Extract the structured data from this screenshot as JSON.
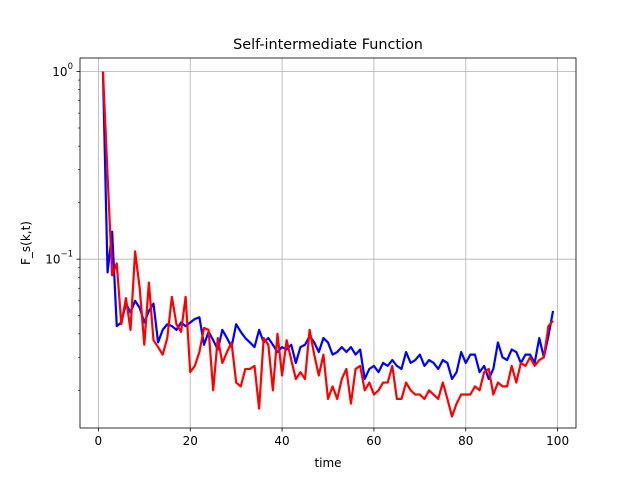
{
  "chart_data": {
    "type": "line",
    "title": "Self-intermediate Function",
    "xlabel": "time",
    "ylabel": "F_s(k,t)",
    "xlim": [
      -4,
      104
    ],
    "ylim": [
      0.0126,
      1.18
    ],
    "yscale": "log",
    "grid": true,
    "x_ticks": [
      0,
      20,
      40,
      60,
      80,
      100
    ],
    "x_tick_labels": [
      "0",
      "20",
      "40",
      "60",
      "80",
      "100"
    ],
    "y_ticks": [
      0.1,
      1.0
    ],
    "y_tick_labels": [
      {
        "base": "10",
        "exp": "−1"
      },
      {
        "base": "10",
        "exp": "0"
      }
    ],
    "x": [
      1,
      2,
      3,
      4,
      5,
      6,
      7,
      8,
      9,
      10,
      11,
      12,
      13,
      14,
      15,
      16,
      17,
      18,
      19,
      20,
      21,
      22,
      23,
      24,
      25,
      26,
      27,
      28,
      29,
      30,
      31,
      32,
      33,
      34,
      35,
      36,
      37,
      38,
      39,
      40,
      41,
      42,
      43,
      44,
      45,
      46,
      47,
      48,
      49,
      50,
      51,
      52,
      53,
      54,
      55,
      56,
      57,
      58,
      59,
      60,
      61,
      62,
      63,
      64,
      65,
      66,
      67,
      68,
      69,
      70,
      71,
      72,
      73,
      74,
      75,
      76,
      77,
      78,
      79,
      80,
      81,
      82,
      83,
      84,
      85,
      86,
      87,
      88,
      89,
      90,
      91,
      92,
      93,
      94,
      95,
      96,
      97,
      98,
      99
    ],
    "series": [
      {
        "color": "#0000ff",
        "values": [
          1.0,
          0.085,
          0.14,
          0.044,
          0.046,
          0.058,
          0.052,
          0.06,
          0.055,
          0.046,
          0.053,
          0.058,
          0.036,
          0.042,
          0.045,
          0.044,
          0.042,
          0.046,
          0.044,
          0.046,
          0.048,
          0.049,
          0.035,
          0.041,
          0.037,
          0.033,
          0.042,
          0.038,
          0.034,
          0.045,
          0.041,
          0.038,
          0.036,
          0.034,
          0.042,
          0.036,
          0.038,
          0.035,
          0.032,
          0.034,
          0.033,
          0.035,
          0.028,
          0.034,
          0.035,
          0.039,
          0.036,
          0.032,
          0.038,
          0.036,
          0.031,
          0.032,
          0.034,
          0.032,
          0.034,
          0.031,
          0.033,
          0.023,
          0.026,
          0.027,
          0.025,
          0.028,
          0.027,
          0.029,
          0.027,
          0.026,
          0.032,
          0.028,
          0.029,
          0.031,
          0.027,
          0.029,
          0.028,
          0.026,
          0.029,
          0.028,
          0.023,
          0.025,
          0.032,
          0.028,
          0.031,
          0.031,
          0.025,
          0.027,
          0.023,
          0.026,
          0.036,
          0.03,
          0.029,
          0.033,
          0.032,
          0.028,
          0.031,
          0.031,
          0.028,
          0.038,
          0.03,
          0.039,
          0.053
        ]
      },
      {
        "color": "#ff0000",
        "values": [
          1.0,
          0.28,
          0.082,
          0.095,
          0.045,
          0.062,
          0.042,
          0.11,
          0.07,
          0.035,
          0.075,
          0.037,
          0.034,
          0.031,
          0.038,
          0.063,
          0.045,
          0.041,
          0.063,
          0.025,
          0.027,
          0.032,
          0.043,
          0.042,
          0.02,
          0.038,
          0.028,
          0.032,
          0.036,
          0.022,
          0.021,
          0.026,
          0.026,
          0.027,
          0.016,
          0.038,
          0.035,
          0.02,
          0.04,
          0.024,
          0.037,
          0.029,
          0.023,
          0.025,
          0.023,
          0.042,
          0.031,
          0.024,
          0.031,
          0.018,
          0.021,
          0.018,
          0.023,
          0.026,
          0.017,
          0.026,
          0.027,
          0.02,
          0.022,
          0.019,
          0.02,
          0.022,
          0.022,
          0.027,
          0.018,
          0.018,
          0.022,
          0.02,
          0.019,
          0.019,
          0.018,
          0.02,
          0.019,
          0.018,
          0.022,
          0.018,
          0.0145,
          0.017,
          0.019,
          0.019,
          0.019,
          0.021,
          0.02,
          0.025,
          0.026,
          0.019,
          0.022,
          0.021,
          0.021,
          0.027,
          0.022,
          0.028,
          0.027,
          0.03,
          0.027,
          0.029,
          0.03,
          0.044,
          0.047
        ]
      }
    ]
  }
}
